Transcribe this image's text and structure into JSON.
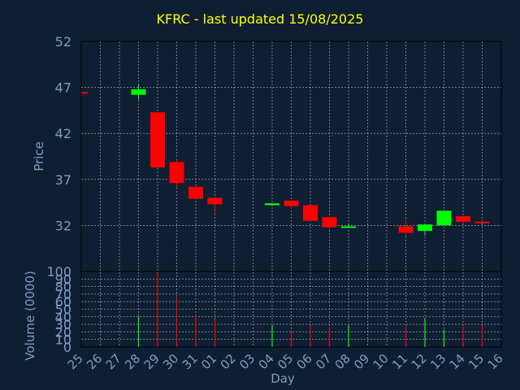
{
  "title": "KFRC - last updated 15/08/2025",
  "colors": {
    "background": "#0f1f33",
    "frame": "#000000",
    "grid": "#ffffff",
    "text": "#7f9cc0",
    "title": "#ffff00",
    "up": "#00ff00",
    "down": "#ff0000"
  },
  "chart_data": [
    {
      "type": "candlestick",
      "ylabel": "Price",
      "ylim": [
        27,
        52
      ],
      "yticks": [
        32,
        37,
        42,
        47,
        52
      ],
      "grid": true,
      "categories": [
        "25",
        "26",
        "27",
        "28",
        "29",
        "30",
        "31",
        "01",
        "02",
        "03",
        "04",
        "05",
        "06",
        "07",
        "08",
        "09",
        "10",
        "11",
        "12",
        "13",
        "14",
        "15",
        "16"
      ],
      "candles": [
        {
          "day": "25",
          "open": 46.5,
          "high": 46.5,
          "low": 46.5,
          "close": 46.5,
          "dir": "down"
        },
        {
          "day": "28",
          "open": 46.2,
          "high": 47.4,
          "low": 45.7,
          "close": 46.8,
          "dir": "up"
        },
        {
          "day": "29",
          "open": 44.3,
          "high": 44.3,
          "low": 38.2,
          "close": 38.3,
          "dir": "down"
        },
        {
          "day": "30",
          "open": 38.9,
          "high": 39.2,
          "low": 36.0,
          "close": 36.6,
          "dir": "down"
        },
        {
          "day": "31",
          "open": 36.2,
          "high": 36.2,
          "low": 34.8,
          "close": 34.9,
          "dir": "down"
        },
        {
          "day": "01",
          "open": 35.0,
          "high": 35.0,
          "low": 33.3,
          "close": 34.3,
          "dir": "down"
        },
        {
          "day": "04",
          "open": 34.2,
          "high": 34.4,
          "low": 34.1,
          "close": 34.4,
          "dir": "up"
        },
        {
          "day": "05",
          "open": 34.7,
          "high": 34.7,
          "low": 33.8,
          "close": 34.1,
          "dir": "down"
        },
        {
          "day": "06",
          "open": 34.2,
          "high": 34.2,
          "low": 32.4,
          "close": 32.5,
          "dir": "down"
        },
        {
          "day": "07",
          "open": 32.9,
          "high": 32.9,
          "low": 31.6,
          "close": 31.8,
          "dir": "down"
        },
        {
          "day": "08",
          "open": 31.8,
          "high": 32.1,
          "low": 31.7,
          "close": 31.9,
          "dir": "up"
        },
        {
          "day": "11",
          "open": 31.9,
          "high": 32.7,
          "low": 30.8,
          "close": 31.2,
          "dir": "down"
        },
        {
          "day": "12",
          "open": 31.4,
          "high": 32.0,
          "low": 30.9,
          "close": 32.1,
          "dir": "up"
        },
        {
          "day": "13",
          "open": 32.0,
          "high": 33.6,
          "low": 32.0,
          "close": 33.6,
          "dir": "up"
        },
        {
          "day": "14",
          "open": 33.0,
          "high": 33.0,
          "low": 32.2,
          "close": 32.4,
          "dir": "down"
        },
        {
          "day": "15",
          "open": 32.4,
          "high": 32.6,
          "low": 32.2,
          "close": 32.3,
          "dir": "down"
        }
      ]
    },
    {
      "type": "bar",
      "ylabel": "Volume (0000)",
      "xlabel": "Day",
      "ylim": [
        0,
        100
      ],
      "yticks": [
        0,
        10,
        20,
        30,
        40,
        50,
        60,
        70,
        80,
        90,
        100
      ],
      "grid": true,
      "categories": [
        "25",
        "26",
        "27",
        "28",
        "29",
        "30",
        "31",
        "01",
        "02",
        "03",
        "04",
        "05",
        "06",
        "07",
        "08",
        "09",
        "10",
        "11",
        "12",
        "13",
        "14",
        "15",
        "16"
      ],
      "bars": [
        {
          "day": "28",
          "value": 40,
          "dir": "up"
        },
        {
          "day": "29",
          "value": 98,
          "dir": "down"
        },
        {
          "day": "30",
          "value": 68,
          "dir": "down"
        },
        {
          "day": "31",
          "value": 42,
          "dir": "down"
        },
        {
          "day": "01",
          "value": 37,
          "dir": "down"
        },
        {
          "day": "04",
          "value": 28,
          "dir": "up"
        },
        {
          "day": "05",
          "value": 21,
          "dir": "down"
        },
        {
          "day": "06",
          "value": 29,
          "dir": "down"
        },
        {
          "day": "07",
          "value": 25,
          "dir": "down"
        },
        {
          "day": "08",
          "value": 28,
          "dir": "up"
        },
        {
          "day": "11",
          "value": 27,
          "dir": "down"
        },
        {
          "day": "12",
          "value": 38,
          "dir": "up"
        },
        {
          "day": "13",
          "value": 23,
          "dir": "up"
        },
        {
          "day": "14",
          "value": 27,
          "dir": "down"
        },
        {
          "day": "15",
          "value": 29,
          "dir": "down"
        }
      ]
    }
  ]
}
